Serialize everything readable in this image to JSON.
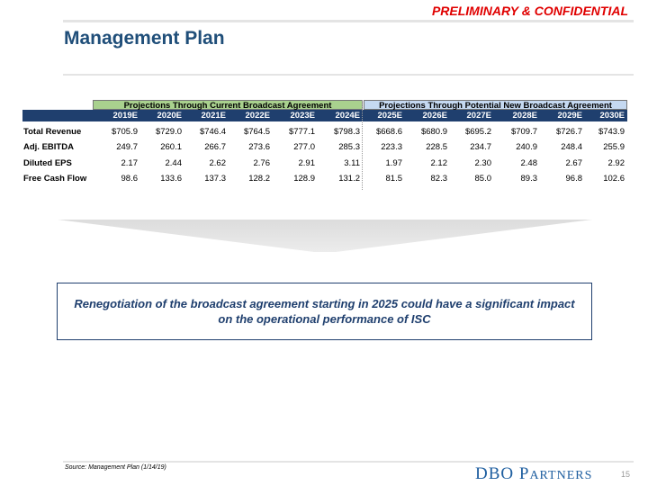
{
  "header": {
    "confidential": "PRELIMINARY & CONFIDENTIAL",
    "title": "Management Plan"
  },
  "table": {
    "group1": "Projections Through Current Broadcast Agreement",
    "group2": "Projections Through Potential New Broadcast Agreement",
    "years": [
      "2019E",
      "2020E",
      "2021E",
      "2022E",
      "2023E",
      "2024E",
      "2025E",
      "2026E",
      "2027E",
      "2028E",
      "2029E",
      "2030E"
    ],
    "rows": [
      {
        "label": "Total Revenue",
        "values": [
          "$705.9",
          "$729.0",
          "$746.4",
          "$764.5",
          "$777.1",
          "$798.3",
          "$668.6",
          "$680.9",
          "$695.2",
          "$709.7",
          "$726.7",
          "$743.9"
        ]
      },
      {
        "label": "Adj. EBITDA",
        "values": [
          "249.7",
          "260.1",
          "266.7",
          "273.6",
          "277.0",
          "285.3",
          "223.3",
          "228.5",
          "234.7",
          "240.9",
          "248.4",
          "255.9"
        ]
      },
      {
        "label": "Diluted EPS",
        "values": [
          "2.17",
          "2.44",
          "2.62",
          "2.76",
          "2.91",
          "3.11",
          "1.97",
          "2.12",
          "2.30",
          "2.48",
          "2.67",
          "2.92"
        ]
      },
      {
        "label": "Free Cash Flow",
        "values": [
          "98.6",
          "133.6",
          "137.3",
          "128.2",
          "128.9",
          "131.2",
          "81.5",
          "82.3",
          "85.0",
          "89.3",
          "96.8",
          "102.6"
        ]
      }
    ]
  },
  "callout": "Renegotiation of the broadcast agreement starting in 2025 could have a significant impact on the operational performance of ISC",
  "footer": {
    "source": "Source: Management Plan (1/14/19)",
    "logo": "DBO Partners",
    "page": "15"
  }
}
